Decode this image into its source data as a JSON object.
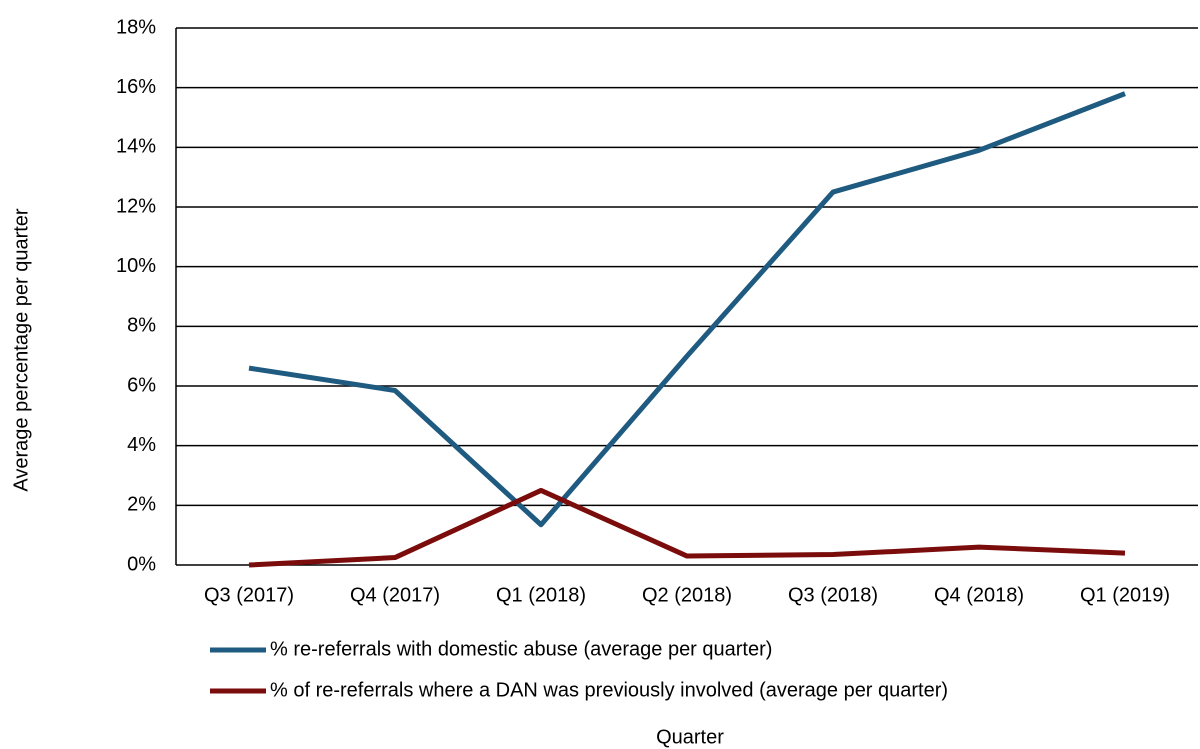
{
  "chart_data": {
    "type": "line",
    "y_label": "Average percentage per quarter",
    "x_label": "Quarter",
    "categories": [
      "Q3 (2017)",
      "Q4 (2017)",
      "Q1 (2018)",
      "Q2 (2018)",
      "Q3 (2018)",
      "Q4 (2018)",
      "Q1 (2019)"
    ],
    "series": [
      {
        "name": "% re-referrals with domestic abuse (average per quarter)",
        "color": "#1f5a80",
        "values": [
          6.6,
          5.85,
          1.35,
          7.0,
          12.5,
          13.9,
          15.8
        ]
      },
      {
        "name": "% of re-referrals where a DAN was previously involved (average per quarter)",
        "color": "#7b0c0c",
        "values": [
          0,
          0.25,
          2.5,
          0.3,
          0.35,
          0.6,
          0.4
        ]
      }
    ],
    "ylim": [
      0,
      18
    ],
    "yticks": [
      {
        "value": 0,
        "label": "0%"
      },
      {
        "value": 2,
        "label": "2%"
      },
      {
        "value": 4,
        "label": "4%"
      },
      {
        "value": 6,
        "label": "6%"
      },
      {
        "value": 8,
        "label": "8%"
      },
      {
        "value": 10,
        "label": "10%"
      },
      {
        "value": 12,
        "label": "12%"
      },
      {
        "value": 14,
        "label": "14%"
      },
      {
        "value": 16,
        "label": "16%"
      },
      {
        "value": 18,
        "label": "18%"
      }
    ],
    "grid": true,
    "legend": "bottom"
  }
}
